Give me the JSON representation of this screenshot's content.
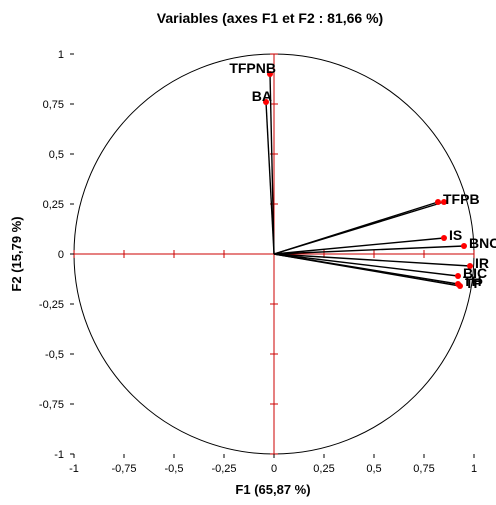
{
  "chart_data": {
    "type": "scatter",
    "title": "Variables (axes F1 et F2 : 81,66 %)",
    "xlabel": "F1 (65,87 %)",
    "ylabel": "F2 (15,79 %)",
    "xlim": [
      -1,
      1
    ],
    "ylim": [
      -1,
      1
    ],
    "xticks": [
      "-1",
      "-0,75",
      "-0,5",
      "-0,25",
      "0",
      "0,25",
      "0,5",
      "0,75",
      "1"
    ],
    "yticks": [
      "-1",
      "-0,75",
      "-0,5",
      "-0,25",
      "0",
      "0,25",
      "0,5",
      "0,75",
      "1"
    ],
    "correlation_circle": true,
    "grid": false,
    "colors": {
      "axis": "#cc0000",
      "point": "#ff0000",
      "vector": "#000000",
      "circle": "#000000"
    },
    "points": [
      {
        "label": "TFPNB",
        "x": -0.02,
        "y": 0.9
      },
      {
        "label": "BA",
        "x": -0.04,
        "y": 0.76
      },
      {
        "label": "TFPB",
        "x": 0.82,
        "y": 0.26
      },
      {
        "label": "",
        "x": 0.85,
        "y": 0.26
      },
      {
        "label": "IS",
        "x": 0.85,
        "y": 0.08
      },
      {
        "label": "BNC",
        "x": 0.95,
        "y": 0.04
      },
      {
        "label": "IR",
        "x": 0.98,
        "y": -0.06
      },
      {
        "label": "BIC",
        "x": 0.92,
        "y": -0.11
      },
      {
        "label": "TH",
        "x": 0.92,
        "y": -0.15
      },
      {
        "label": "TP",
        "x": 0.93,
        "y": -0.16
      }
    ]
  }
}
